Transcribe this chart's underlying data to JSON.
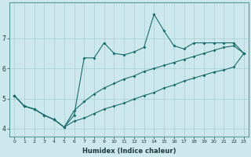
{
  "xlabel": "Humidex (Indice chaleur)",
  "bg_color": "#cce8ec",
  "line_color": "#1a6b6b",
  "x_data": [
    0,
    1,
    2,
    3,
    4,
    5,
    6,
    7,
    8,
    9,
    10,
    11,
    12,
    13,
    14,
    15,
    16,
    17,
    18,
    19,
    20,
    21,
    22,
    23
  ],
  "y_main": [
    5.1,
    4.75,
    4.65,
    4.45,
    4.3,
    4.05,
    4.45,
    6.35,
    6.35,
    6.85,
    6.5,
    6.45,
    6.55,
    6.7,
    7.8,
    7.25,
    6.75,
    6.65,
    6.85,
    6.85,
    6.85,
    6.85,
    6.85,
    6.5
  ],
  "y_upper": [
    5.1,
    4.75,
    4.65,
    4.45,
    4.3,
    4.05,
    4.6,
    4.9,
    5.15,
    5.35,
    5.5,
    5.65,
    5.75,
    5.9,
    6.0,
    6.1,
    6.2,
    6.3,
    6.4,
    6.5,
    6.6,
    6.7,
    6.75,
    6.5
  ],
  "y_lower": [
    5.1,
    4.75,
    4.65,
    4.45,
    4.3,
    4.05,
    4.25,
    4.35,
    4.5,
    4.65,
    4.75,
    4.85,
    4.98,
    5.1,
    5.2,
    5.35,
    5.45,
    5.58,
    5.68,
    5.78,
    5.88,
    5.95,
    6.05,
    6.5
  ],
  "xlim": [
    -0.5,
    23.5
  ],
  "ylim": [
    3.75,
    8.2
  ],
  "yticks": [
    4,
    5,
    6,
    7
  ],
  "xticks": [
    0,
    1,
    2,
    3,
    4,
    5,
    6,
    7,
    8,
    9,
    10,
    11,
    12,
    13,
    14,
    15,
    16,
    17,
    18,
    19,
    20,
    21,
    22,
    23
  ],
  "grid_color": "#a8cdd4",
  "spine_color": "#5a9a9a",
  "tick_color": "#1a3a3a",
  "xlabel_color": "#1a3a3a"
}
